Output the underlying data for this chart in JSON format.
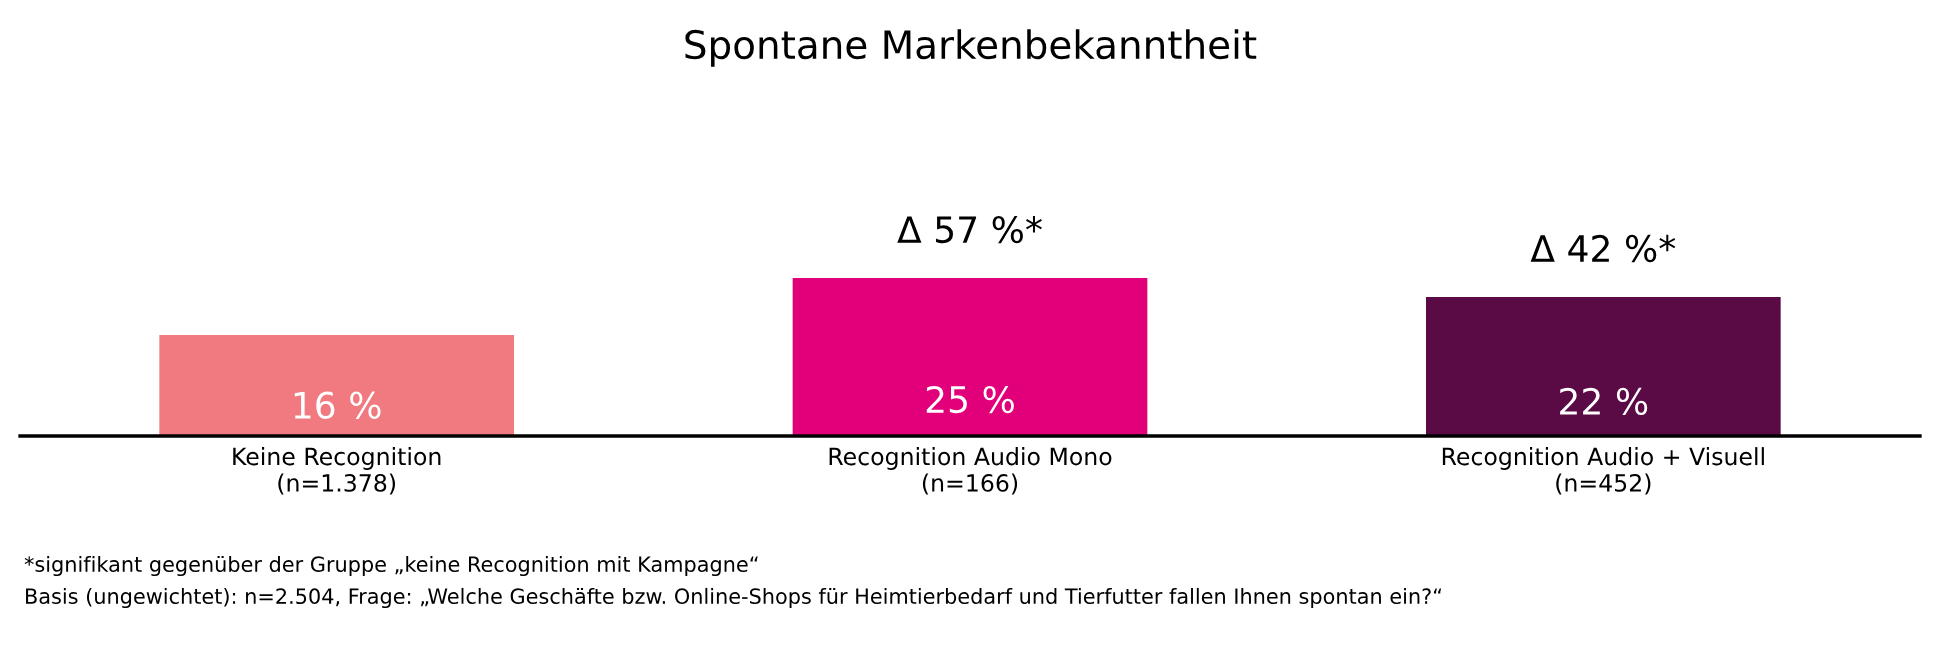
{
  "chart_data": {
    "type": "bar",
    "title": "Spontane Markenbekanntheit",
    "categories": [
      "Keine Recognition\n(n=1.378)",
      "Recognition Audio Mono\n(n=166)",
      "Recognition Audio + Visuell\n(n=452)"
    ],
    "values": [
      16,
      25,
      22
    ],
    "colors": [
      "#f07a80",
      "#e2007a",
      "#5a0a44"
    ],
    "value_labels": [
      "16 %",
      "25 %",
      "22 %"
    ],
    "annotations": [
      {
        "text": "Δ 57 %*",
        "x": "Recognition Audio Mono\n(n=166)",
        "y": 25
      },
      {
        "text": "Δ 42 %*",
        "x": "Recognition Audio + Visuell\n(n=452)",
        "y": 22
      },
      "*signifikant gegenüber der Gruppe „keine Recognition mit Kampagne“",
      "Basis (ungewichtet): n=2.504, Frage: „Welche Geschäfte bzw. Online-Shops für Heimtierbedarf und Tierfutter fallen Ihnen spontan ein?“"
    ],
    "grid": false,
    "legend": false
  }
}
